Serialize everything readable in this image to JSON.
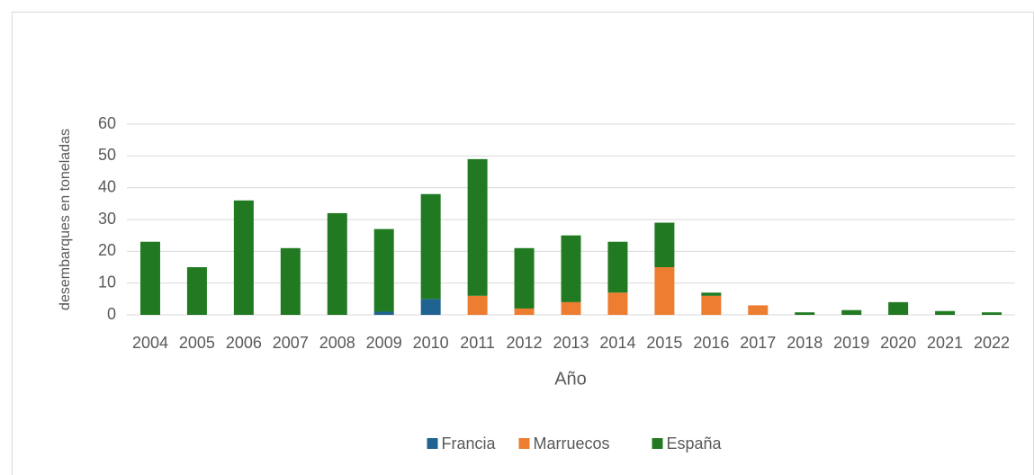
{
  "chart_data": {
    "type": "bar",
    "stacked": true,
    "x_label": "Año",
    "y_label": "desembarques en toneladas",
    "categories": [
      "2004",
      "2005",
      "2006",
      "2007",
      "2008",
      "2009",
      "2010",
      "2011",
      "2012",
      "2013",
      "2014",
      "2015",
      "2016",
      "2017",
      "2018",
      "2019",
      "2020",
      "2021",
      "2022"
    ],
    "series": [
      {
        "name": "Francia",
        "color": "#1f6391",
        "values": [
          0,
          0,
          0,
          0,
          0,
          1,
          5,
          0,
          0,
          0,
          0,
          0,
          0,
          0,
          0,
          0,
          0,
          0,
          0
        ]
      },
      {
        "name": "Marruecos",
        "color": "#ed7d31",
        "values": [
          0,
          0,
          0,
          0,
          0,
          0,
          0,
          6,
          2,
          4,
          7,
          15,
          6,
          3,
          0,
          0,
          0,
          0,
          0
        ]
      },
      {
        "name": "España",
        "color": "#217a21",
        "values": [
          23,
          15,
          36,
          21,
          32,
          26,
          33,
          43,
          19,
          21,
          16,
          14,
          1,
          0,
          0.8,
          1.5,
          4,
          1.2,
          0.8
        ]
      }
    ],
    "ylim": [
      0,
      60
    ],
    "yticks": [
      0,
      10,
      20,
      30,
      40,
      50,
      60
    ],
    "grid": true,
    "legend": "bottom"
  }
}
